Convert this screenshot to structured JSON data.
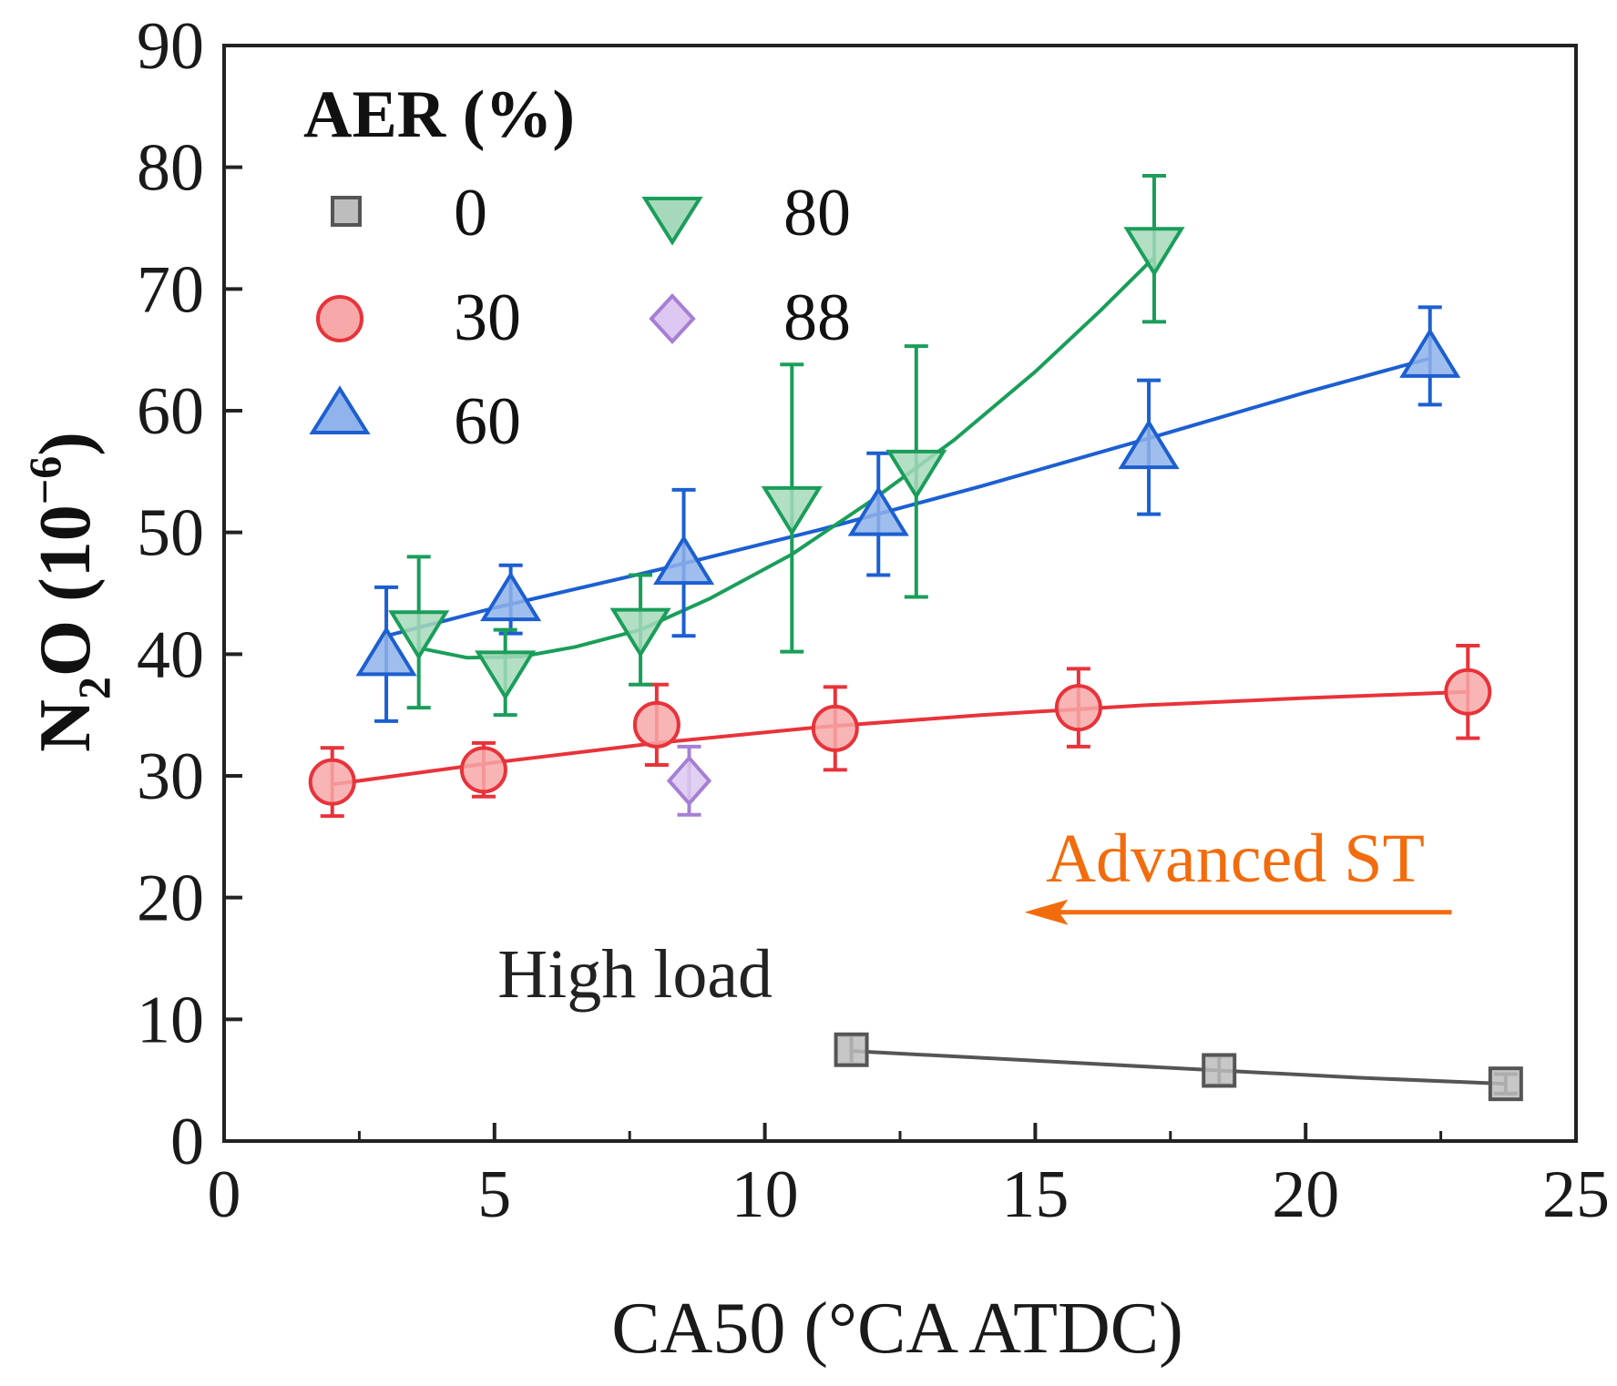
{
  "chart_data": {
    "type": "scatter",
    "title": "",
    "xlabel": "CA50 (°CA ATDC)",
    "ylabel_main": "N",
    "ylabel_sub": "2",
    "ylabel_rest": "O (10",
    "ylabel_sup": "−6",
    "ylabel_close": ")",
    "xlim": [
      0,
      25
    ],
    "ylim": [
      0,
      90
    ],
    "x_ticks": [
      0,
      5,
      10,
      15,
      20,
      25
    ],
    "y_ticks": [
      0,
      10,
      20,
      30,
      40,
      50,
      60,
      70,
      80,
      90
    ],
    "grid": false,
    "legend": {
      "title": "AER (%)",
      "position": "top-left"
    },
    "series": [
      {
        "name": "0",
        "marker": "square",
        "color": "#555555",
        "fill": "#bdbdbd",
        "x": [
          11.6,
          18.4,
          23.7
        ],
        "y": [
          7.5,
          5.8,
          4.7
        ],
        "err": [
          1.2,
          1.2,
          0.8
        ]
      },
      {
        "name": "30",
        "marker": "circle",
        "color": "#e8333a",
        "fill": "#f7a8a8",
        "x": [
          2.0,
          4.8,
          8.0,
          11.3,
          15.8,
          23.0
        ],
        "y": [
          29.5,
          30.5,
          34.2,
          33.9,
          35.6,
          36.9
        ],
        "err": [
          2.8,
          2.2,
          3.3,
          3.4,
          3.2,
          3.8
        ]
      },
      {
        "name": "60",
        "marker": "triangle-up",
        "color": "#1c5fd1",
        "fill": "#8fb3ea",
        "x": [
          3.0,
          5.3,
          8.5,
          12.1,
          17.1,
          22.3
        ],
        "y": [
          40.0,
          44.5,
          47.5,
          51.5,
          57.0,
          64.5
        ],
        "err": [
          5.5,
          2.8,
          6.0,
          5.0,
          5.5,
          4.0
        ]
      },
      {
        "name": "80",
        "marker": "triangle-down",
        "color": "#1a9e5a",
        "fill": "#a6d9bb",
        "x": [
          3.6,
          5.2,
          7.7,
          10.5,
          12.8,
          17.2
        ],
        "y": [
          41.8,
          38.5,
          42.0,
          52.0,
          55.0,
          73.3
        ],
        "err": [
          6.2,
          3.5,
          4.5,
          11.8,
          10.3,
          6.0
        ]
      },
      {
        "name": "88",
        "marker": "diamond",
        "color": "#a57fd6",
        "fill": "#dcc8f0",
        "x": [
          8.6
        ],
        "y": [
          29.6
        ],
        "err": [
          2.8
        ]
      }
    ],
    "fit_curves": [
      {
        "series": "0",
        "color": "#555555",
        "x": [
          11.6,
          15.0,
          18.4,
          21.0,
          23.7
        ],
        "y": [
          7.4,
          6.6,
          5.8,
          5.2,
          4.7
        ]
      },
      {
        "series": "30",
        "color": "#e8333a",
        "x": [
          2.0,
          5.0,
          8.0,
          11.0,
          14.0,
          17.0,
          20.0,
          23.0
        ],
        "y": [
          29.3,
          31.1,
          32.7,
          34.0,
          35.0,
          35.8,
          36.4,
          36.9
        ]
      },
      {
        "series": "60",
        "color": "#1c5fd1",
        "x": [
          3.0,
          5.0,
          8.0,
          11.0,
          14.0,
          17.0,
          20.0,
          22.3
        ],
        "y": [
          41.5,
          43.8,
          46.9,
          50.2,
          53.8,
          57.6,
          61.5,
          64.3
        ]
      },
      {
        "series": "80",
        "color": "#1a9e5a",
        "x": [
          3.6,
          4.5,
          5.5,
          6.5,
          7.7,
          9.0,
          10.5,
          12.0,
          13.5,
          15.0,
          16.2,
          17.2
        ],
        "y": [
          40.5,
          39.7,
          39.8,
          40.6,
          42.0,
          44.6,
          48.2,
          52.7,
          57.6,
          63.2,
          68.2,
          72.6
        ]
      }
    ],
    "annotations": [
      {
        "text": "Advanced ST",
        "color": "#f26c0d",
        "x": 18.7,
        "y": 22.8
      },
      {
        "text": "High load",
        "color": "#222222",
        "x": 7.6,
        "y": 13.3
      }
    ],
    "arrow": {
      "color": "#f26c0d",
      "from": [
        22.7,
        18.8
      ],
      "to": [
        14.8,
        18.8
      ]
    }
  }
}
